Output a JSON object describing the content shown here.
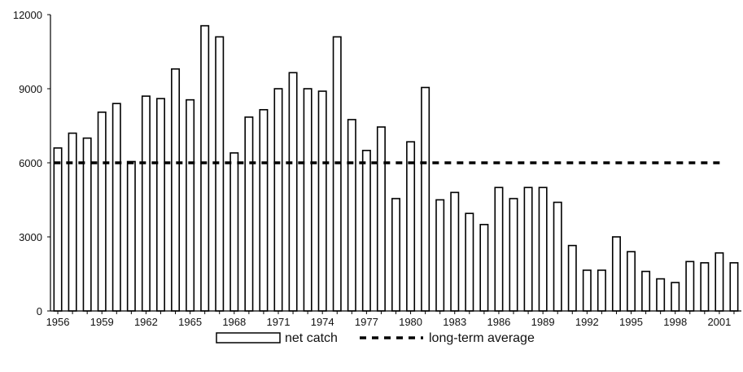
{
  "chart_data": {
    "type": "bar",
    "title": "",
    "xlabel": "",
    "ylabel": "",
    "ylim": [
      0,
      12000
    ],
    "yticks": [
      "0",
      "3000",
      "6000",
      "9000",
      "12000"
    ],
    "ytick_values": [
      0,
      3000,
      6000,
      9000,
      12000
    ],
    "xtick_labels": [
      "1956",
      "1959",
      "1962",
      "1965",
      "1968",
      "1971",
      "1974",
      "1977",
      "1980",
      "1983",
      "1986",
      "1989",
      "1992",
      "1995",
      "1998",
      "2001"
    ],
    "categories": [
      "1956",
      "1957",
      "1958",
      "1959",
      "1960",
      "1961",
      "1962",
      "1963",
      "1964",
      "1965",
      "1966",
      "1967",
      "1968",
      "1969",
      "1970",
      "1971",
      "1972",
      "1973",
      "1974",
      "1975",
      "1976",
      "1977",
      "1978",
      "1979",
      "1980",
      "1981",
      "1982",
      "1983",
      "1984",
      "1985",
      "1986",
      "1987",
      "1988",
      "1989",
      "1990",
      "1991",
      "1992",
      "1993",
      "1994",
      "1995",
      "1996",
      "1997",
      "1998",
      "1999",
      "2000",
      "2001",
      "2002"
    ],
    "series": [
      {
        "name": "net catch",
        "style": "hollow-bar",
        "values": [
          6600,
          7200,
          7000,
          8050,
          8400,
          6050,
          8700,
          8600,
          9800,
          8550,
          11550,
          11100,
          6400,
          7850,
          8150,
          9000,
          9650,
          9000,
          8900,
          11100,
          7750,
          6500,
          7450,
          4550,
          6850,
          9050,
          4500,
          4800,
          3950,
          3500,
          5000,
          4550,
          5000,
          5000,
          4400,
          2650,
          1650,
          1650,
          3000,
          2400,
          1600,
          1300,
          1150,
          2000,
          1950,
          2350,
          1950
        ]
      },
      {
        "name": "long-term average",
        "style": "dashed-line",
        "value": 6000,
        "from": "1956",
        "to": "2001"
      }
    ],
    "legend": {
      "placement": "bottom-center",
      "entries": [
        "net catch",
        "long-term average"
      ]
    },
    "grid": false,
    "colors": {
      "bar_fill": "#ffffff",
      "bar_stroke": "#000000",
      "line": "#000000"
    }
  }
}
